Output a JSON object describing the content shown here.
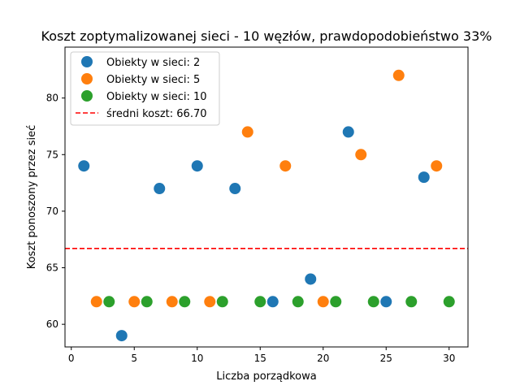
{
  "chart_data": {
    "type": "scatter",
    "title": "Koszt zoptymalizowanej sieci - 10 węzłów, prawdopodobieństwo 33%",
    "xlabel": "Liczba porządkowa",
    "ylabel": "Koszt ponoszony przez sieć",
    "xlim": [
      -0.5,
      31.5
    ],
    "ylim": [
      58,
      84.5
    ],
    "xticks": [
      0,
      5,
      10,
      15,
      20,
      25,
      30
    ],
    "yticks": [
      60,
      65,
      70,
      75,
      80
    ],
    "grid": false,
    "legend_position": "top-left",
    "series": [
      {
        "name": "Obiekty w sieci: 2",
        "color": "#1f77b4",
        "points": [
          [
            1,
            74
          ],
          [
            4,
            59
          ],
          [
            7,
            72
          ],
          [
            10,
            74
          ],
          [
            13,
            72
          ],
          [
            16,
            62
          ],
          [
            19,
            64
          ],
          [
            22,
            77
          ],
          [
            25,
            62
          ],
          [
            28,
            73
          ]
        ]
      },
      {
        "name": "Obiekty w sieci: 5",
        "color": "#ff7f0e",
        "points": [
          [
            2,
            62
          ],
          [
            5,
            62
          ],
          [
            8,
            62
          ],
          [
            11,
            62
          ],
          [
            14,
            77
          ],
          [
            17,
            74
          ],
          [
            20,
            62
          ],
          [
            23,
            75
          ],
          [
            26,
            82
          ],
          [
            29,
            74
          ]
        ]
      },
      {
        "name": "Obiekty w sieci: 10",
        "color": "#2ca02c",
        "points": [
          [
            3,
            62
          ],
          [
            6,
            62
          ],
          [
            9,
            62
          ],
          [
            12,
            62
          ],
          [
            15,
            62
          ],
          [
            18,
            62
          ],
          [
            21,
            62
          ],
          [
            24,
            62
          ],
          [
            27,
            62
          ],
          [
            30,
            62
          ]
        ]
      }
    ],
    "reference_line": {
      "label": "średni koszt: 66.70",
      "y": 66.7,
      "color": "#ff0000",
      "style": "dashed"
    }
  }
}
